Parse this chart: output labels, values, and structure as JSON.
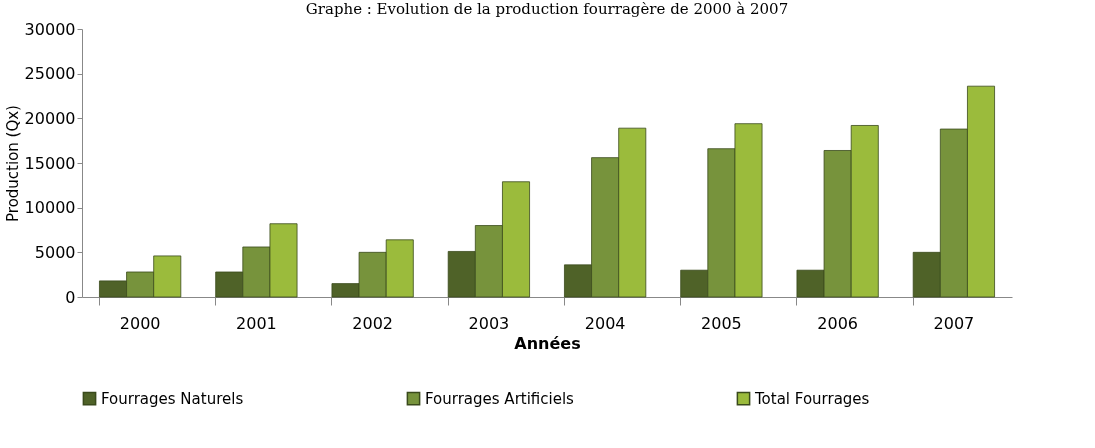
{
  "chart_data": {
    "type": "bar",
    "title": "Graphe : Evolution de la production fourragère de 2000 à 2007",
    "xlabel": "Années",
    "ylabel": "Production (Qx)",
    "categories": [
      "2000",
      "2001",
      "2002",
      "2003",
      "2004",
      "2005",
      "2006",
      "2007"
    ],
    "series": [
      {
        "name": "Fourrages Naturels",
        "color": "#4f6228",
        "values": [
          1800,
          2800,
          1500,
          5100,
          3600,
          3000,
          3000,
          5000
        ]
      },
      {
        "name": "Fourrages Artificiels",
        "color": "#77933c",
        "values": [
          2800,
          5600,
          5000,
          8000,
          15600,
          16600,
          16400,
          18800
        ]
      },
      {
        "name": "Total Fourrages",
        "color": "#9bbb3c",
        "values": [
          4600,
          8200,
          6400,
          12900,
          18900,
          19400,
          19200,
          23600
        ]
      }
    ],
    "ylim": [
      0,
      30000
    ],
    "yticks": [
      0,
      5000,
      10000,
      15000,
      20000,
      25000,
      30000
    ],
    "grid": false,
    "legend": "bottom"
  }
}
